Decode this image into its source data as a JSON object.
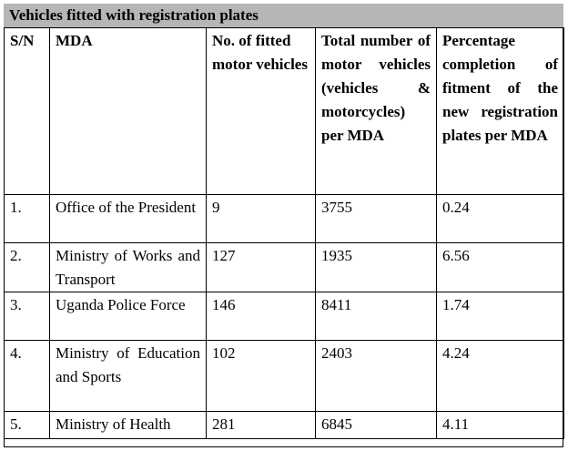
{
  "title": "Vehicles fitted with registration plates",
  "columns": [
    "S/N",
    "MDA",
    "No. of fitted motor vehicles",
    "Total number of motor vehicles (vehicles & motorcycles) per MDA",
    "Percentage completion of fitment of the new registration plates per MDA"
  ],
  "rows": [
    {
      "sn": "1.",
      "mda": "Office of the President",
      "fitted": "9",
      "total": "3755",
      "percentage": "0.24"
    },
    {
      "sn": "2.",
      "mda": "Ministry of Works and Transport",
      "fitted": "127",
      "total": "1935",
      "percentage": "6.56"
    },
    {
      "sn": "3.",
      "mda": "Uganda Police Force",
      "fitted": "146",
      "total": "8411",
      "percentage": "1.74"
    },
    {
      "sn": "4.",
      "mda": "Ministry of Education and Sports",
      "fitted": "102",
      "total": "2403",
      "percentage": "4.24"
    },
    {
      "sn": "5.",
      "mda": "Ministry of Health",
      "fitted": "281",
      "total": "6845",
      "percentage": "4.11"
    }
  ]
}
